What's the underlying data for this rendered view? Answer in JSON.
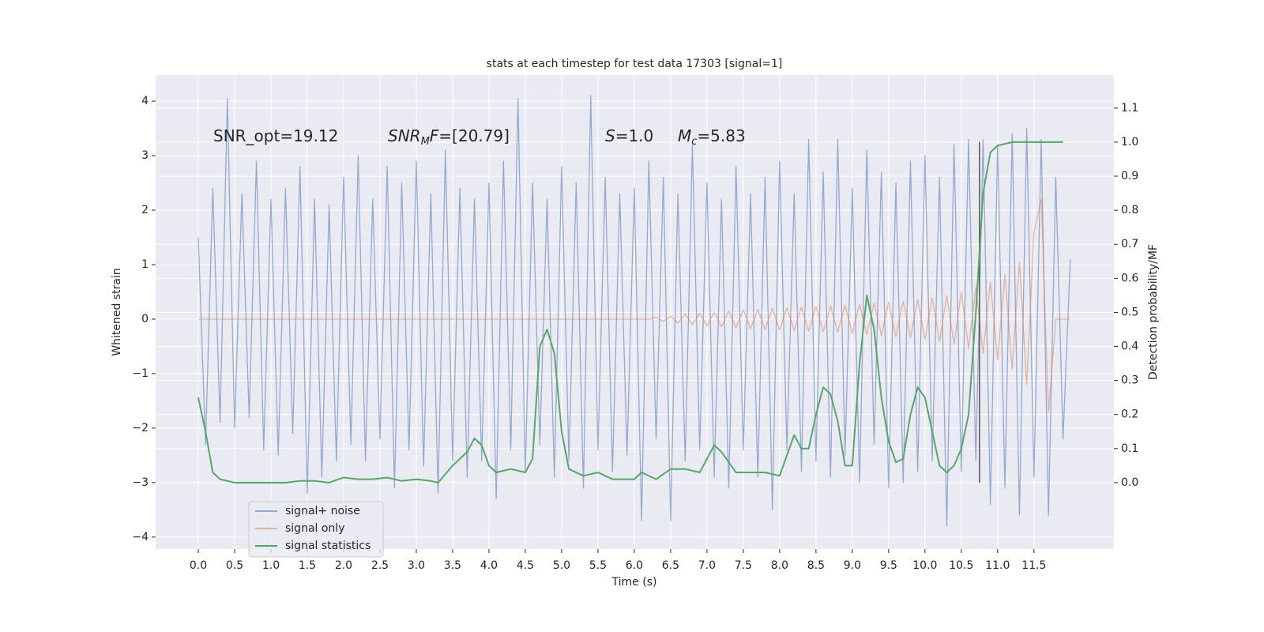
{
  "chart_data": {
    "type": "line",
    "title": "stats at each timestep for test data 17303 [signal=1]",
    "xlabel": "Time (s)",
    "ylabel": "Whitened strain",
    "y2label": "Detection probability/MF",
    "xlim": [
      -0.587,
      12.6
    ],
    "ylim": [
      -4.22,
      4.48
    ],
    "y2lim": [
      -0.195,
      1.197
    ],
    "xticks": [
      {
        "value": 0,
        "label": "0.0"
      },
      0.5,
      {
        "value": 1,
        "label": "1.0"
      },
      1.5,
      {
        "value": 2,
        "label": "2.0"
      },
      2.5,
      {
        "value": 3,
        "label": "3.0"
      },
      3.5,
      {
        "value": 4,
        "label": "4.0"
      },
      4.5,
      {
        "value": 5,
        "label": "5.0"
      },
      5.5,
      {
        "value": 6,
        "label": "6.0"
      },
      6.5,
      {
        "value": 7,
        "label": "7.0"
      },
      7.5,
      {
        "value": 8,
        "label": "8.0"
      },
      8.5,
      {
        "value": 9,
        "label": "9.0"
      },
      9.5,
      {
        "value": 10,
        "label": "10.0"
      },
      10.5,
      {
        "value": 11,
        "label": "11.0"
      },
      11.5
    ],
    "yticks": [
      {
        "value": -4,
        "label": "−4"
      },
      {
        "value": -3,
        "label": "−3"
      },
      {
        "value": -2,
        "label": "−2"
      },
      {
        "value": -1,
        "label": "−1"
      },
      0,
      1,
      2,
      3,
      4
    ],
    "y2ticks": [
      {
        "value": 0,
        "label": "0.0"
      },
      0.1,
      0.2,
      0.3,
      0.4,
      0.5,
      0.6,
      0.7,
      0.8,
      0.9,
      {
        "value": 1,
        "label": "1.0"
      },
      1.1
    ],
    "grid": true,
    "legend": "lower left",
    "x": [
      0,
      0.1,
      0.2,
      0.3,
      0.4,
      0.5,
      0.6,
      0.7,
      0.8,
      0.9,
      1,
      1.1,
      1.2,
      1.3,
      1.4,
      1.5,
      1.6,
      1.7,
      1.8,
      1.9,
      2,
      2.1,
      2.2,
      2.3,
      2.4,
      2.5,
      2.6,
      2.7,
      2.8,
      2.9,
      3,
      3.1,
      3.2,
      3.3,
      3.4,
      3.5,
      3.6,
      3.7,
      3.8,
      3.9,
      4,
      4.1,
      4.2,
      4.3,
      4.4,
      4.5,
      4.6,
      4.7,
      4.8,
      4.9,
      5,
      5.1,
      5.2,
      5.3,
      5.4,
      5.5,
      5.6,
      5.7,
      5.8,
      5.9,
      6,
      6.1,
      6.2,
      6.3,
      6.4,
      6.5,
      6.6,
      6.7,
      6.8,
      6.9,
      7,
      7.1,
      7.2,
      7.3,
      7.4,
      7.5,
      7.6,
      7.7,
      7.8,
      7.9,
      8,
      8.1,
      8.2,
      8.3,
      8.4,
      8.5,
      8.6,
      8.7,
      8.8,
      8.9,
      9,
      9.1,
      9.2,
      9.3,
      9.4,
      9.5,
      9.6,
      9.7,
      9.8,
      9.9,
      10,
      10.1,
      10.2,
      10.3,
      10.4,
      10.5,
      10.6,
      10.7,
      10.8,
      10.9,
      11,
      11.1,
      11.2,
      11.3,
      11.4,
      11.5,
      11.6,
      11.7,
      11.8,
      11.9,
      12
    ],
    "series": [
      {
        "name": "signal+ noise",
        "color": "#4c72b0",
        "values": [
          1.5,
          -2.3,
          2.4,
          -1.9,
          4.05,
          -2.0,
          2.3,
          -1.8,
          2.9,
          -2.4,
          2.2,
          -2.5,
          2.4,
          -2.1,
          2.8,
          -3.2,
          2.2,
          -2.9,
          2.1,
          -2.6,
          2.6,
          -2.3,
          3.0,
          -2.6,
          2.2,
          -2.2,
          2.8,
          -3.1,
          2.5,
          -2.4,
          2.9,
          -2.7,
          2.3,
          -3.2,
          3.1,
          -2.6,
          2.4,
          -2.9,
          2.2,
          -2.6,
          2.5,
          -3.3,
          2.9,
          -2.4,
          4.05,
          -2.8,
          2.5,
          -2.3,
          2.2,
          -2.9,
          2.8,
          -2.6,
          2.5,
          -3.1,
          4.1,
          -2.4,
          2.6,
          -2.8,
          2.3,
          -2.5,
          2.4,
          -3.7,
          2.9,
          -2.2,
          2.6,
          -3.7,
          2.3,
          -2.6,
          3.2,
          -2.4,
          2.5,
          -2.9,
          2.2,
          -3.1,
          2.8,
          -2.4,
          2.3,
          -2.9,
          2.6,
          -3.5,
          2.9,
          -2.4,
          2.3,
          -2.8,
          3.3,
          -2.6,
          2.7,
          -2.9,
          3.3,
          -2.5,
          2.4,
          -3.0,
          3.1,
          -2.3,
          2.7,
          -3.1,
          2.5,
          -3.0,
          2.9,
          -2.8,
          3.0,
          -2.6,
          2.6,
          -3.8,
          3.2,
          -2.8,
          3.3,
          -2.6,
          3.3,
          -3.4,
          3.2,
          -3.1,
          3.4,
          -3.6,
          3.5,
          -2.9,
          3.3,
          -3.6,
          2.6,
          -2.2,
          1.1
        ]
      },
      {
        "name": "signal only",
        "color": "#dd8452",
        "values": [
          0,
          0,
          0,
          0,
          0,
          0,
          0,
          0,
          0,
          0,
          0,
          0,
          0,
          0,
          0,
          0,
          0,
          0,
          0,
          0,
          0,
          0,
          0,
          0,
          0,
          0,
          0,
          0,
          0,
          0,
          0,
          0,
          0,
          0,
          0,
          0,
          0,
          0,
          0,
          0,
          0,
          0,
          0,
          0,
          0,
          0,
          0,
          0,
          0,
          0,
          0,
          0,
          0,
          0,
          0,
          0,
          0,
          0,
          0,
          0,
          0,
          0,
          0,
          0.03,
          -0.04,
          0.05,
          -0.07,
          0.09,
          -0.1,
          0.11,
          -0.12,
          0.13,
          -0.14,
          0.15,
          -0.16,
          0.17,
          -0.18,
          0.18,
          -0.19,
          0.2,
          -0.2,
          0.21,
          -0.21,
          0.22,
          -0.22,
          0.23,
          -0.23,
          0.24,
          -0.24,
          0.25,
          -0.26,
          0.27,
          -0.28,
          0.29,
          -0.3,
          0.31,
          -0.32,
          0.33,
          -0.34,
          0.36,
          -0.37,
          0.39,
          -0.41,
          0.43,
          -0.46,
          0.5,
          -0.54,
          0.58,
          -0.63,
          0.68,
          -0.75,
          0.82,
          -0.92,
          1.05,
          -1.2,
          1.6,
          2.2,
          -1.7,
          0,
          0,
          0
        ]
      },
      {
        "name": "signal statistics",
        "color": "#55a868",
        "axis": "y2",
        "x": [
          0,
          0.1,
          0.2,
          0.3,
          0.5,
          0.8,
          1.0,
          1.2,
          1.4,
          1.6,
          1.8,
          2.0,
          2.2,
          2.4,
          2.6,
          2.8,
          3.0,
          3.2,
          3.3,
          3.5,
          3.7,
          3.8,
          3.9,
          4.0,
          4.1,
          4.3,
          4.5,
          4.6,
          4.7,
          4.8,
          4.9,
          5.0,
          5.1,
          5.3,
          5.5,
          5.7,
          6.0,
          6.1,
          6.3,
          6.5,
          6.7,
          6.9,
          7.0,
          7.1,
          7.2,
          7.4,
          7.6,
          7.8,
          8.0,
          8.2,
          8.3,
          8.4,
          8.5,
          8.6,
          8.7,
          8.8,
          8.9,
          9.0,
          9.1,
          9.2,
          9.3,
          9.4,
          9.5,
          9.6,
          9.7,
          9.8,
          9.9,
          10.0,
          10.1,
          10.2,
          10.3,
          10.4,
          10.5,
          10.6,
          10.7,
          10.8,
          10.9,
          11.0,
          11.2,
          11.5,
          11.9
        ],
        "values": [
          0.25,
          0.15,
          0.03,
          0.01,
          0,
          0,
          0,
          0,
          0.005,
          0.005,
          0,
          0.015,
          0.01,
          0.01,
          0.015,
          0.005,
          0.01,
          0.005,
          0,
          0.05,
          0.09,
          0.13,
          0.11,
          0.05,
          0.03,
          0.04,
          0.03,
          0.07,
          0.4,
          0.45,
          0.38,
          0.15,
          0.04,
          0.02,
          0.03,
          0.01,
          0.01,
          0.03,
          0.01,
          0.04,
          0.04,
          0.03,
          0.07,
          0.11,
          0.09,
          0.03,
          0.03,
          0.03,
          0.02,
          0.14,
          0.1,
          0.1,
          0.2,
          0.28,
          0.26,
          0.18,
          0.05,
          0.05,
          0.35,
          0.55,
          0.45,
          0.25,
          0.12,
          0.06,
          0.07,
          0.2,
          0.28,
          0.25,
          0.15,
          0.05,
          0.03,
          0.05,
          0.1,
          0.2,
          0.5,
          0.85,
          0.97,
          0.99,
          1.0,
          1.0,
          1.0
        ]
      }
    ],
    "vline": {
      "x": 10.75,
      "ylim": [
        0,
        1
      ],
      "axis": "y2",
      "color": "#555555"
    },
    "annotations": [
      {
        "parts": [
          {
            "text": "SNR_opt=19.12"
          }
        ]
      },
      {
        "parts": [
          {
            "text": "SNR",
            "italic": true
          },
          {
            "text": "M",
            "italic": true,
            "sub": true
          },
          {
            "text": "F",
            "italic": true
          },
          {
            "text": "=[20.79]"
          }
        ]
      },
      {
        "parts": [
          {
            "text": "S",
            "italic": true
          },
          {
            "text": "=1.0"
          }
        ]
      },
      {
        "parts": [
          {
            "text": "M",
            "italic": true
          },
          {
            "text": "c",
            "italic": true,
            "sub": true
          },
          {
            "text": "=5.83"
          }
        ]
      }
    ]
  }
}
